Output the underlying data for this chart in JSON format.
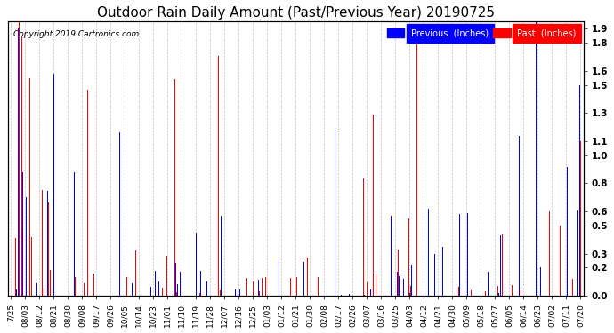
{
  "title": "Outdoor Rain Daily Amount (Past/Previous Year) 20190725",
  "copyright": "Copyright 2019 Cartronics.com",
  "legend_previous": "Previous  (Inches)",
  "legend_past": "Past  (Inches)",
  "ylabel_right_ticks": [
    0.0,
    0.2,
    0.3,
    0.5,
    0.6,
    0.8,
    1.0,
    1.1,
    1.3,
    1.5,
    1.6,
    1.8,
    1.9
  ],
  "ylim": [
    0,
    1.95
  ],
  "color_previous": "#0000FF",
  "color_past": "#FF0000",
  "color_background": "#FFFFFF",
  "color_grid": "#AAAAAA",
  "title_fontsize": 11,
  "tick_fontsize": 6.5,
  "n_days": 366,
  "x_tick_labels": [
    "7/25",
    "08/03",
    "08/12",
    "08/21",
    "08/30",
    "09/08",
    "09/17",
    "09/26",
    "10/05",
    "10/14",
    "10/23",
    "11/01",
    "11/10",
    "11/19",
    "11/28",
    "12/07",
    "12/16",
    "12/25",
    "01/03",
    "01/12",
    "01/21",
    "01/30",
    "02/08",
    "02/17",
    "02/26",
    "03/07",
    "03/16",
    "03/25",
    "04/03",
    "04/12",
    "04/21",
    "04/30",
    "05/09",
    "05/18",
    "05/27",
    "06/05",
    "06/14",
    "06/23",
    "07/02",
    "07/11",
    "07/20"
  ]
}
